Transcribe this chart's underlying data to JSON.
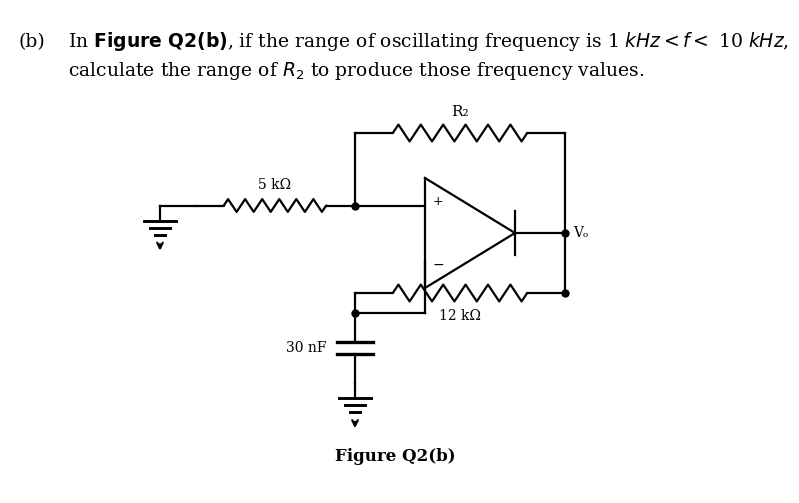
{
  "title_b": "(b)",
  "label_R2": "R₂",
  "label_5k": "5 kΩ",
  "label_30nF": "30 nF",
  "label_12k": "12 kΩ",
  "label_Vo": "Vₒ",
  "label_plus": "+",
  "label_minus": "−",
  "figure_label": "Figure Q2(b)",
  "bg_color": "#ffffff",
  "line_color": "#000000",
  "fig_width": 7.99,
  "fig_height": 5.03,
  "dpi": 100
}
